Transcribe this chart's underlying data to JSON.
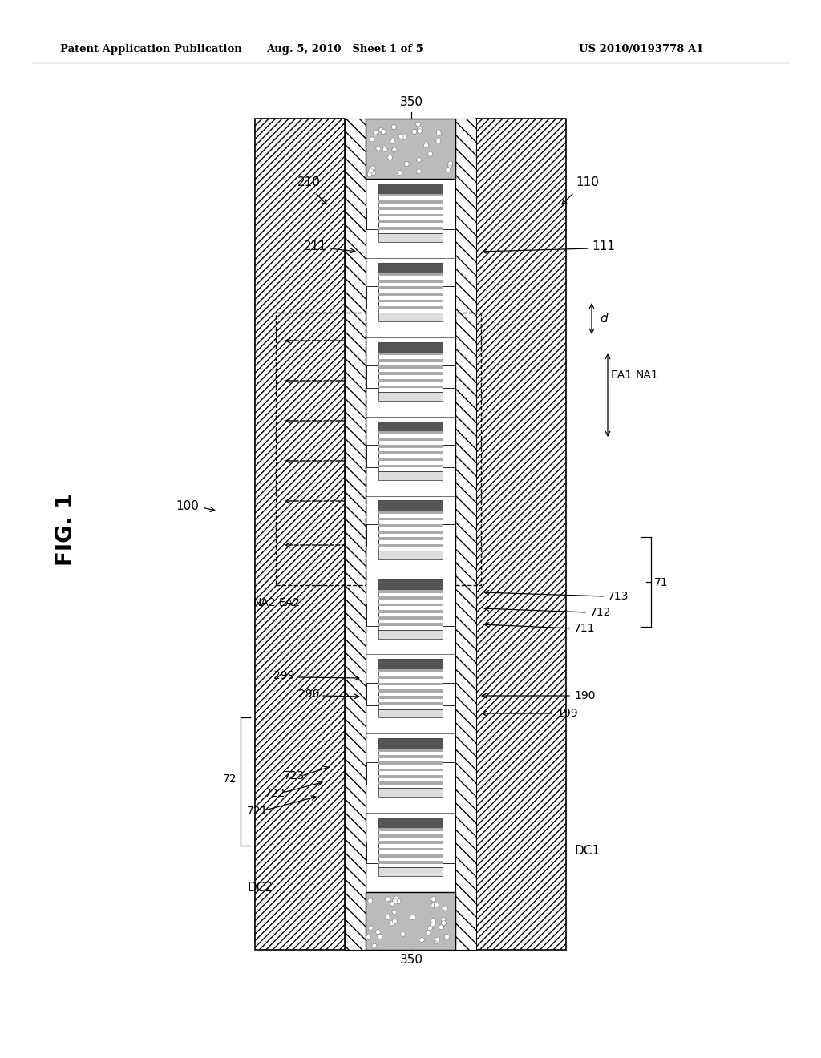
{
  "header_left": "Patent Application Publication",
  "header_mid": "Aug. 5, 2010   Sheet 1 of 5",
  "header_right": "US 2010/0193778 A1",
  "fig_label": "FIG. 1",
  "bg_color": "#ffffff"
}
